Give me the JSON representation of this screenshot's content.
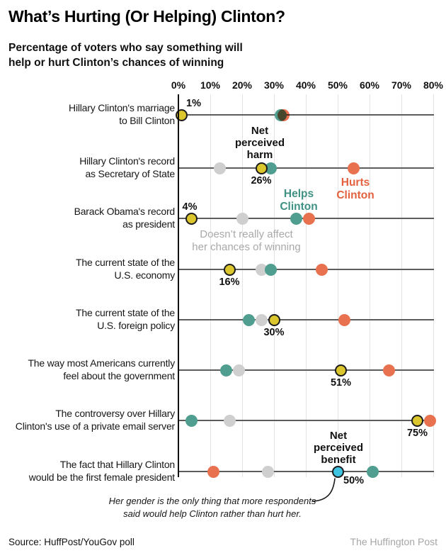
{
  "header": {
    "title": "What’s Hurting (Or Helping) Clinton?",
    "subtitle": "Percentage of voters who say something will\nhelp or hurt Clinton’s chances of winning"
  },
  "colors": {
    "helps": "#4f9e8f",
    "hurts": "#e8714f",
    "neutral": "#cfcfcf",
    "net_harm": "#dcc62d",
    "net_benefit": "#3ec3e0",
    "net_outline": "#1c1c1c",
    "helps_text": "#3e9183",
    "hurts_text": "#e4603f",
    "neutral_text": "#a9a9a9",
    "grid": "#e3e3e3",
    "row_line": "#5c5c5c",
    "credit_text": "#a6a6a6"
  },
  "chart_data": {
    "type": "scatter",
    "title": "What’s Hurting (Or Helping) Clinton?",
    "subtitle": "Percentage of voters who say something will help or hurt Clinton’s chances of winning",
    "x_axis": {
      "min": 0,
      "max": 80,
      "unit": "%",
      "tick_labels": [
        "0%",
        "10%",
        "20%",
        "30%",
        "40%",
        "50%",
        "60%",
        "70%",
        "80%"
      ]
    },
    "grid": true,
    "series_legend": {
      "helps": "Helps\nClinton",
      "hurts": "Hurts\nClinton",
      "neutral": "Doesn’t really affect\nher chances of winning",
      "net_harm": "Net\nperceived\nharm",
      "net_benefit": "Net\nperceived\nbenefit"
    },
    "rows": [
      {
        "label": "Hillary Clinton's marriage\nto Bill Clinton",
        "helps": 32,
        "hurts": 33,
        "neutral": null,
        "net": 1,
        "net_type": "harm",
        "net_label": "1%",
        "net_label_pos": "above-right"
      },
      {
        "label": "Hillary Clinton's record\nas Secretary of State",
        "helps": 29,
        "hurts": 55,
        "neutral": 13,
        "net": 26,
        "net_type": "harm",
        "net_label": "26%",
        "net_label_pos": "below"
      },
      {
        "label": "Barack Obama's record\nas president",
        "helps": 37,
        "hurts": 41,
        "neutral": 20,
        "net": 4,
        "net_type": "harm",
        "net_label": "4%",
        "net_label_pos": "above"
      },
      {
        "label": "The current state of the\nU.S. economy",
        "helps": 29,
        "hurts": 45,
        "neutral": 26,
        "net": 16,
        "net_type": "harm",
        "net_label": "16%",
        "net_label_pos": "below"
      },
      {
        "label": "The current state of the\nU.S. foreign policy",
        "helps": 22,
        "hurts": 52,
        "neutral": 26,
        "net": 30,
        "net_type": "harm",
        "net_label": "30%",
        "net_label_pos": "below"
      },
      {
        "label": "The way most Americans currently\nfeel about the government",
        "helps": 15,
        "hurts": 66,
        "neutral": 19,
        "net": 51,
        "net_type": "harm",
        "net_label": "51%",
        "net_label_pos": "below"
      },
      {
        "label": "The controversy over Hillary\nClinton's use of a private email server",
        "helps": 4,
        "hurts": 79,
        "neutral": 16,
        "net": 75,
        "net_type": "harm",
        "net_label": "75%",
        "net_label_pos": "below"
      },
      {
        "label": "The fact that Hillary Clinton\nwould be the first female president",
        "helps": 61,
        "hurts": 11,
        "neutral": 28,
        "net": 50,
        "net_type": "benefit",
        "net_label": "50%",
        "net_label_pos": "below-right"
      }
    ],
    "annotation": "Her gender is the only thing that more respondents\nsaid would help Clinton rather than hurt her."
  },
  "footer": {
    "source": "Source: HuffPost/YouGov poll",
    "credit": "The Huffington Post"
  }
}
